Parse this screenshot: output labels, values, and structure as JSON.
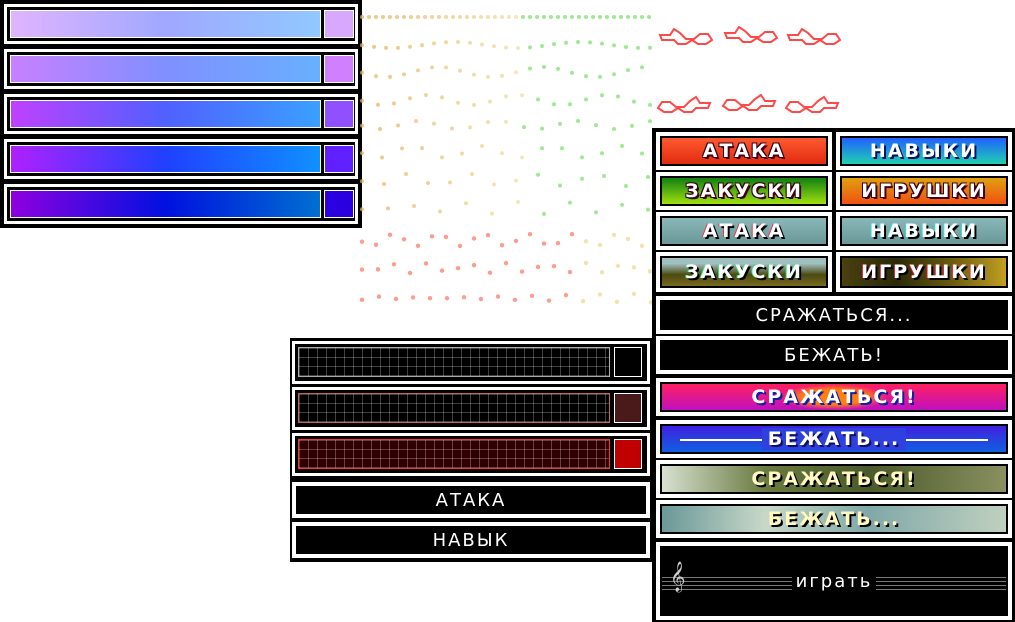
{
  "gradient_bars": [
    {
      "colors": [
        "#e0b4ff",
        "#a0a8ff",
        "#90c8ff"
      ],
      "swatch": "#d8a8ff"
    },
    {
      "colors": [
        "#c880ff",
        "#8090ff",
        "#68b0ff"
      ],
      "swatch": "#d080ff"
    },
    {
      "colors": [
        "#c040ff",
        "#5060ff",
        "#3aa0ff"
      ],
      "swatch": "#9050ff"
    },
    {
      "colors": [
        "#b020ff",
        "#2040ff",
        "#1090ff"
      ],
      "swatch": "#6020ff"
    },
    {
      "colors": [
        "#9000e0",
        "#0010e0",
        "#0070d0"
      ],
      "swatch": "#2a00e0"
    }
  ],
  "menu_buttons": {
    "attack_red": "АТАКА",
    "skills_blue": "НАВЫКИ",
    "snacks_green": "ЗАКУСКИ",
    "toys_orange": "ИГРУШКИ",
    "attack_photo": "АТАКА",
    "skills_photo": "НАВЫКИ",
    "snacks_photo": "ЗАКУСКИ",
    "toys_photo": "ИГРУШКИ"
  },
  "wide_buttons": {
    "fight_dark": "СРАЖАТЬСЯ...",
    "run_dark": "БЕЖАТЬ!",
    "fight_color": "СРАЖАТЬСЯ!",
    "run_color": "БЕЖАТЬ...",
    "fight_photo": "СРАЖАТЬСЯ!",
    "run_photo": "БЕЖАТЬ...",
    "play": "играть"
  },
  "dark_bars": [
    {
      "swatch": "#000000",
      "line": "#aaaaaa"
    },
    {
      "swatch": "#4a1a1a",
      "line": "#c86060"
    },
    {
      "swatch": "#c00000",
      "line": "#ff3030"
    }
  ],
  "dark_buttons": {
    "attack": "АТАКА",
    "skill": "НАВЫК"
  },
  "colors": {
    "squiggle": "#ff4848",
    "dots_warm": "#e8b060",
    "dots_green": "#80e070",
    "dots_red": "#ff7a6a"
  }
}
